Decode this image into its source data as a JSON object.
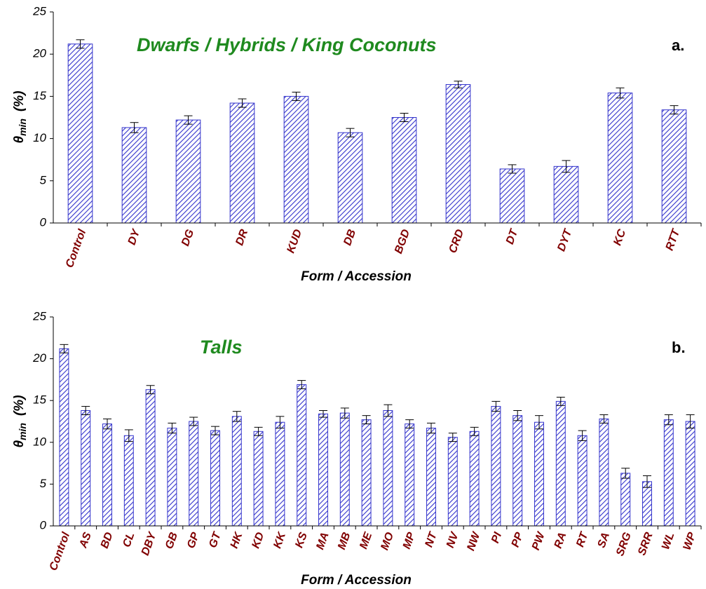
{
  "chart_data": [
    {
      "type": "bar",
      "title": "Dwarfs / Hybrids / King Coconuts",
      "panel_label": "a.",
      "x_label": "Form / Accession",
      "y_label": {
        "symbol": "θ",
        "subscript": "min",
        "unit": "(%)"
      },
      "categories": [
        "Control",
        "DY",
        "DG",
        "DR",
        "KUD",
        "DB",
        "BGD",
        "CRD",
        "DT",
        "DYT",
        "KC",
        "RTT"
      ],
      "values": [
        21.2,
        11.3,
        12.2,
        14.2,
        15.0,
        10.7,
        12.5,
        16.4,
        6.4,
        6.7,
        15.4,
        13.4
      ],
      "errors": [
        0.5,
        0.6,
        0.5,
        0.5,
        0.5,
        0.5,
        0.5,
        0.4,
        0.5,
        0.7,
        0.6,
        0.5
      ],
      "color": "#3333cc",
      "ylim": [
        0,
        25
      ],
      "yticks": [
        0,
        5,
        10,
        15,
        20,
        25
      ],
      "grid": false
    },
    {
      "type": "bar",
      "title": "Talls",
      "panel_label": "b.",
      "x_label": "Form / Accession",
      "y_label": {
        "symbol": "θ",
        "subscript": "min",
        "unit": "(%)"
      },
      "categories": [
        "Control",
        "AS",
        "BD",
        "CL",
        "DBY",
        "GB",
        "GP",
        "GT",
        "HK",
        "KD",
        "KK",
        "KS",
        "MA",
        "MB",
        "ME",
        "MO",
        "MP",
        "NT",
        "NV",
        "NW",
        "PI",
        "PP",
        "PW",
        "RA",
        "RT",
        "SA",
        "SRG",
        "SRR",
        "WL",
        "WP"
      ],
      "values": [
        21.2,
        13.8,
        12.2,
        10.8,
        16.3,
        11.7,
        12.5,
        11.4,
        13.1,
        11.3,
        12.4,
        16.9,
        13.4,
        13.5,
        12.7,
        13.8,
        12.2,
        11.7,
        10.6,
        11.3,
        14.3,
        13.2,
        12.4,
        14.9,
        10.8,
        12.8,
        6.3,
        5.3,
        12.7,
        12.5
      ],
      "errors": [
        0.5,
        0.5,
        0.6,
        0.7,
        0.5,
        0.6,
        0.5,
        0.5,
        0.6,
        0.5,
        0.7,
        0.5,
        0.4,
        0.6,
        0.5,
        0.7,
        0.5,
        0.6,
        0.5,
        0.5,
        0.6,
        0.6,
        0.8,
        0.5,
        0.6,
        0.5,
        0.6,
        0.7,
        0.6,
        0.8
      ],
      "color": "#3333cc",
      "ylim": [
        0,
        25
      ],
      "yticks": [
        0,
        5,
        10,
        15,
        20,
        25
      ],
      "grid": false
    }
  ]
}
